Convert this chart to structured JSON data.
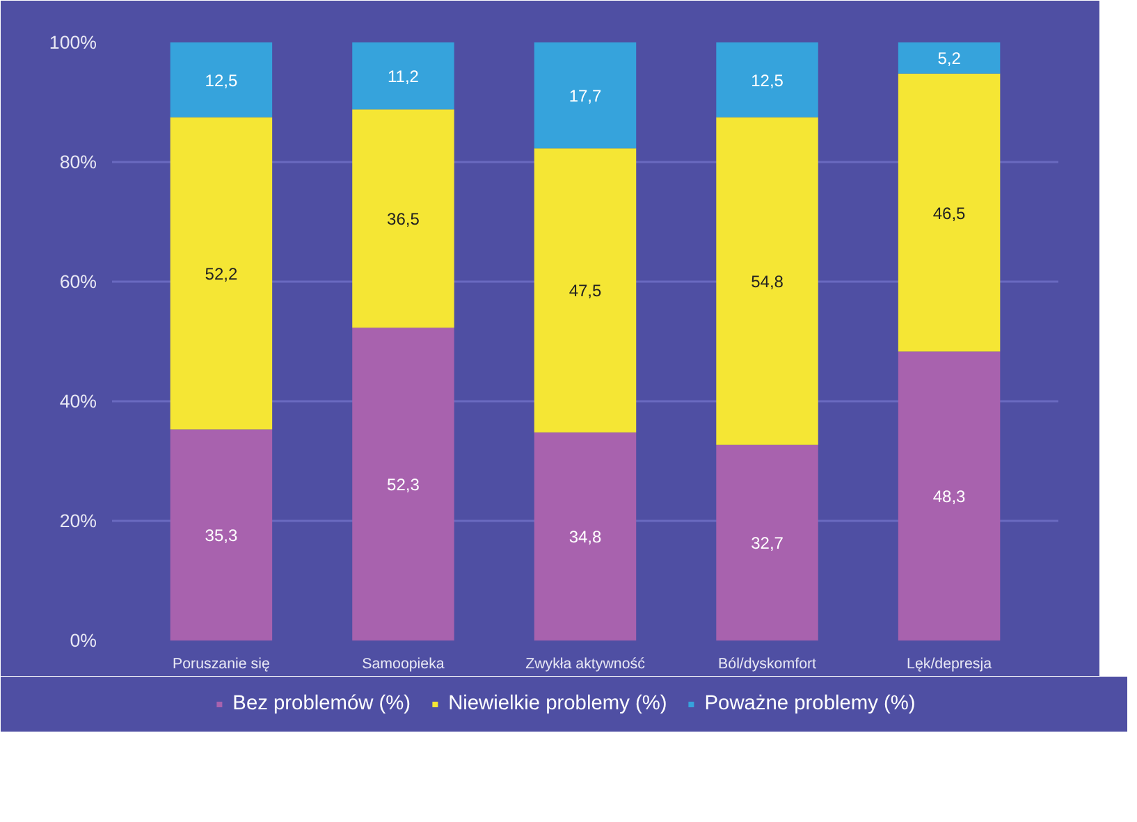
{
  "chart_data": {
    "type": "bar",
    "stacked": true,
    "categories": [
      "Poruszanie się",
      "Samoopieka",
      "Zwykła aktywność",
      "Ból/dyskomfort",
      "Lęk/depresja"
    ],
    "series": [
      {
        "name": "Bez problemów (%)",
        "color": "#a862ae",
        "values": [
          35.3,
          52.3,
          34.8,
          32.7,
          48.3
        ],
        "value_labels": [
          "35,3",
          "52,3",
          "34,8",
          "32,7",
          "48,3"
        ]
      },
      {
        "name": "Niewielkie problemy (%)",
        "color": "#f5e634",
        "values": [
          52.2,
          36.5,
          47.5,
          54.8,
          46.5
        ],
        "value_labels": [
          "52,2",
          "36,5",
          "47,5",
          "54,8",
          "46,5"
        ]
      },
      {
        "name": "Poważne problemy (%)",
        "color": "#36a3dc",
        "values": [
          12.5,
          11.2,
          17.7,
          12.5,
          5.2
        ],
        "value_labels": [
          "12,5",
          "11,2",
          "17,7",
          "12,5",
          "5,2"
        ]
      }
    ],
    "ylim": [
      0,
      100
    ],
    "yticks": [
      {
        "value": 0,
        "label": "0%"
      },
      {
        "value": 20,
        "label": "20%"
      },
      {
        "value": 40,
        "label": "40%"
      },
      {
        "value": 60,
        "label": "60%"
      },
      {
        "value": 80,
        "label": "80%"
      },
      {
        "value": 100,
        "label": "100%"
      }
    ],
    "grid": "y",
    "legend": "bottom"
  }
}
